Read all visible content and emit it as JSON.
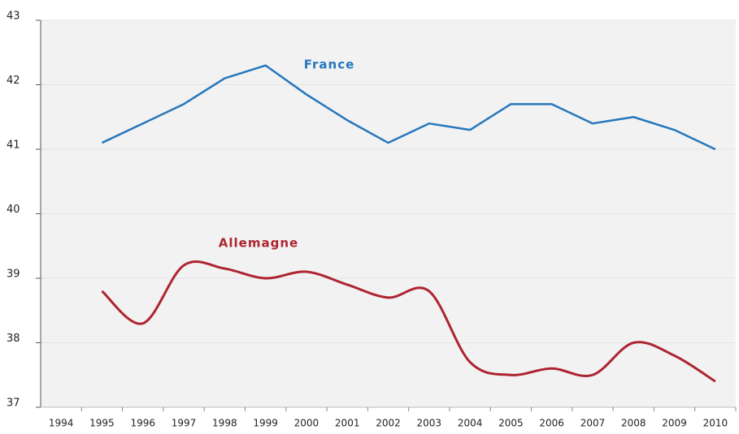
{
  "chart_data": {
    "type": "line",
    "categories": [
      "1994",
      "1995",
      "1996",
      "1997",
      "1998",
      "1999",
      "2000",
      "2001",
      "2002",
      "2003",
      "2004",
      "2005",
      "2006",
      "2007",
      "2008",
      "2009",
      "2010"
    ],
    "series": [
      {
        "name": "France",
        "color": "#2677bd",
        "values": [
          null,
          41.1,
          41.4,
          41.7,
          42.1,
          42.3,
          41.85,
          41.45,
          41.1,
          41.4,
          41.3,
          41.7,
          41.7,
          41.4,
          41.5,
          41.3,
          41.0
        ]
      },
      {
        "name": "Allemagne",
        "color": "#ad2430",
        "values": [
          null,
          38.8,
          38.3,
          39.2,
          39.15,
          39.0,
          39.1,
          38.9,
          38.7,
          38.8,
          37.7,
          37.5,
          37.6,
          37.5,
          38.0,
          37.8,
          37.4
        ]
      }
    ],
    "ylim": [
      37,
      43
    ],
    "yticks": [
      37,
      38,
      39,
      40,
      41,
      42,
      43
    ],
    "grid": true
  }
}
